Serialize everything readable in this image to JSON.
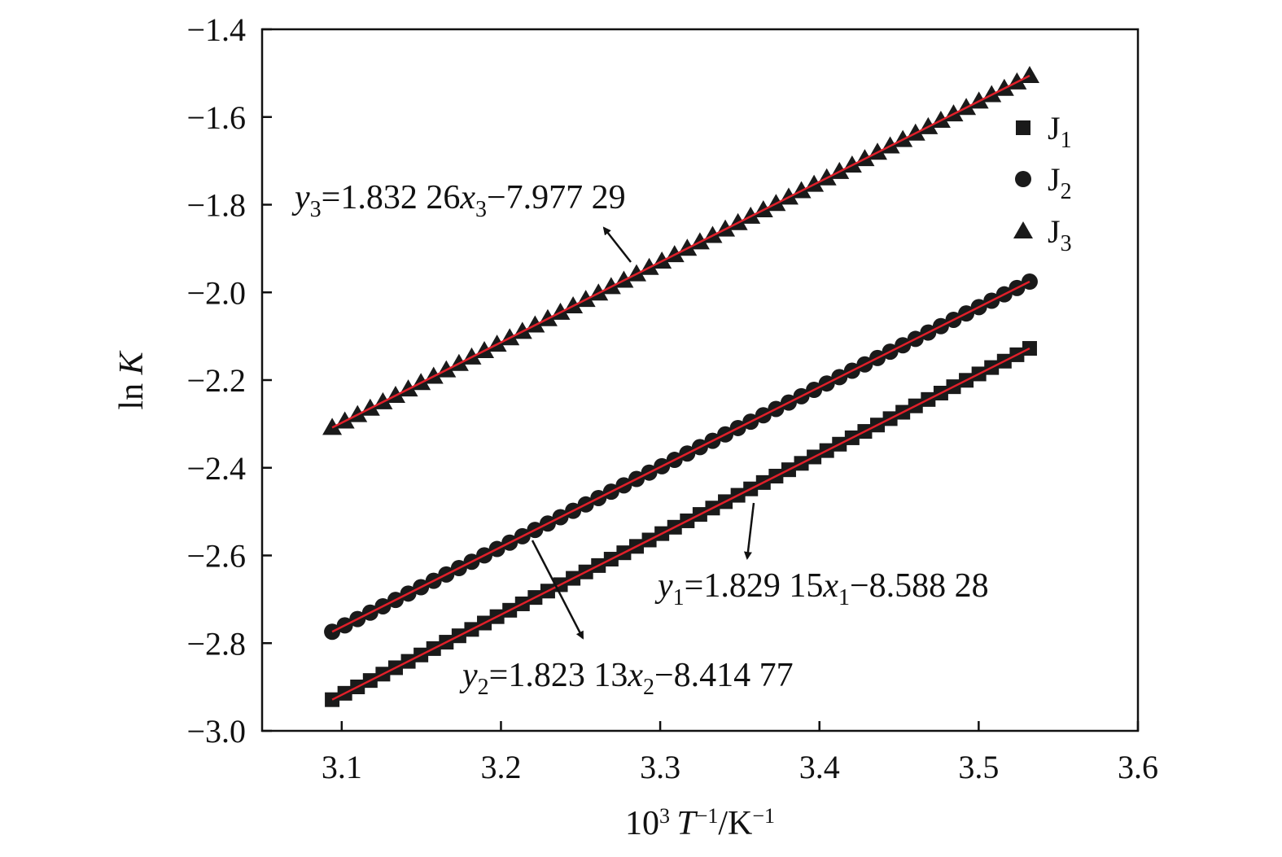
{
  "chart_data": {
    "type": "scatter",
    "title": "",
    "xlabel": {
      "prefix": "10",
      "prefix_sup": "3",
      "var": "T",
      "var_sup": "−1",
      "mid": "/K",
      "unit_sup": "−1"
    },
    "ylabel": {
      "prefix": "ln ",
      "var": "K"
    },
    "xlim": [
      3.05,
      3.6
    ],
    "ylim": [
      -3.0,
      -1.4
    ],
    "x_ticks": [
      3.1,
      3.2,
      3.3,
      3.4,
      3.5,
      3.6
    ],
    "x_tick_labels": [
      "3.1",
      "3.2",
      "3.3",
      "3.4",
      "3.5",
      "3.6"
    ],
    "y_ticks": [
      -3.0,
      -2.8,
      -2.6,
      -2.4,
      -2.2,
      -2.0,
      -1.8,
      -1.6,
      -1.4
    ],
    "y_tick_labels": [
      "−3.0",
      "−2.8",
      "−2.6",
      "−2.4",
      "−2.2",
      "−2.0",
      "−1.8",
      "−1.6",
      "−1.4"
    ],
    "grid": false,
    "legend_position": "top-right",
    "fit_line_color": "#e0202a",
    "marker_color": "#1a1a1a",
    "x_range": [
      3.094,
      3.532
    ],
    "points_per_series": 56,
    "series": [
      {
        "name": {
          "base": "J",
          "sub": "1"
        },
        "marker": "square",
        "slope": 1.82915,
        "intercept": -8.58828,
        "equation": {
          "y": "y",
          "ysub": "1",
          "eq": "=1.829 15",
          "x": "x",
          "xsub": "1",
          "rest": "−8.588 28"
        }
      },
      {
        "name": {
          "base": "J",
          "sub": "2"
        },
        "marker": "circle",
        "slope": 1.82313,
        "intercept": -8.41477,
        "equation": {
          "y": "y",
          "ysub": "2",
          "eq": "=1.823 13",
          "x": "x",
          "xsub": "2",
          "rest": "−8.414 77"
        }
      },
      {
        "name": {
          "base": "J",
          "sub": "3"
        },
        "marker": "triangle",
        "slope": 1.83226,
        "intercept": -7.97729,
        "equation": {
          "y": "y",
          "ysub": "3",
          "eq": "=1.832 26",
          "x": "x",
          "xsub": "3",
          "rest": "−7.977 29"
        }
      }
    ]
  }
}
